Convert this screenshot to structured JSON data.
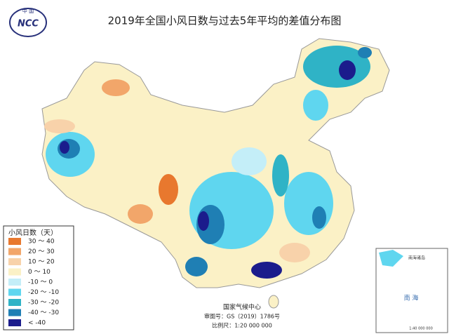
{
  "logo": {
    "top": "中 国",
    "text": "NCC"
  },
  "title": "2019年全国小风日数与过去5年平均的差值分布图",
  "legend": {
    "title": "小风日数（天）",
    "items": [
      {
        "label": "30 ～ 40",
        "color": "#e8782e"
      },
      {
        "label": "20 ～ 30",
        "color": "#f2a66a"
      },
      {
        "label": "10 ～ 20",
        "color": "#f8d2aa"
      },
      {
        "label": "0 ～ 10",
        "color": "#fbf1c6"
      },
      {
        "label": "-10 ～ 0",
        "color": "#c4eef8"
      },
      {
        "label": "-20 ～ -10",
        "color": "#5fd6ef"
      },
      {
        "label": "-30 ～ -20",
        "color": "#2fb3c6"
      },
      {
        "label": "-40 ～ -30",
        "color": "#1f7fb4"
      },
      {
        "label": "< -40",
        "color": "#1b1c8c"
      }
    ]
  },
  "footer": {
    "agency": "国家气候中心",
    "approval": "审图号：GS（2019）1786号",
    "scale": "比例尺：1:20 000 000"
  },
  "inset": {
    "title": "南海诸岛",
    "sea": "南 海",
    "scale": "1:40 000 000"
  }
}
